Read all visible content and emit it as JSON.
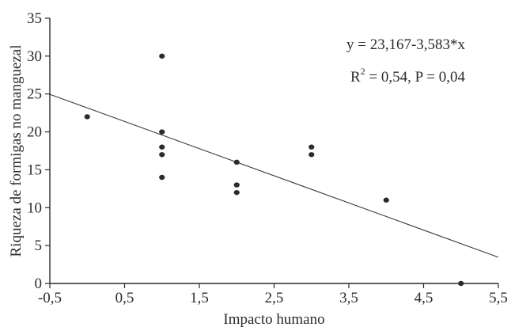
{
  "chart_data": {
    "type": "scatter",
    "title": "",
    "xlabel": "Impacto humano",
    "ylabel": "Riqueza de formigas no manguezal",
    "xlim": [
      -0.5,
      5.5
    ],
    "ylim": [
      0,
      35
    ],
    "x_ticks": [
      -0.5,
      0.5,
      1.5,
      2.5,
      3.5,
      4.5,
      5.5
    ],
    "x_tick_labels": [
      "-0,5",
      "0,5",
      "1,5",
      "2,5",
      "3,5",
      "4,5",
      "5,5"
    ],
    "y_ticks": [
      0,
      5,
      10,
      15,
      20,
      25,
      30,
      35
    ],
    "y_tick_labels": [
      "0",
      "5",
      "10",
      "15",
      "20",
      "25",
      "30",
      "35"
    ],
    "grid": false,
    "points": [
      {
        "x": 0,
        "y": 22
      },
      {
        "x": 1,
        "y": 30
      },
      {
        "x": 1,
        "y": 20
      },
      {
        "x": 1,
        "y": 18
      },
      {
        "x": 1,
        "y": 17
      },
      {
        "x": 1,
        "y": 14
      },
      {
        "x": 2,
        "y": 16
      },
      {
        "x": 2,
        "y": 13
      },
      {
        "x": 2,
        "y": 12
      },
      {
        "x": 3,
        "y": 18
      },
      {
        "x": 3,
        "y": 17
      },
      {
        "x": 4,
        "y": 11
      },
      {
        "x": 5,
        "y": 0
      }
    ],
    "regression": {
      "intercept": 23.167,
      "slope": -3.583
    },
    "annotations": {
      "equation": "y = 23,167-3,583*x",
      "r2_prefix": "R",
      "r2_sup": "2",
      "r2_rest": " = 0,54, P = 0,04"
    },
    "colors": {
      "points": "#2b2b2b",
      "line": "#3a3a3a",
      "axes": "#2b2b2b"
    }
  }
}
